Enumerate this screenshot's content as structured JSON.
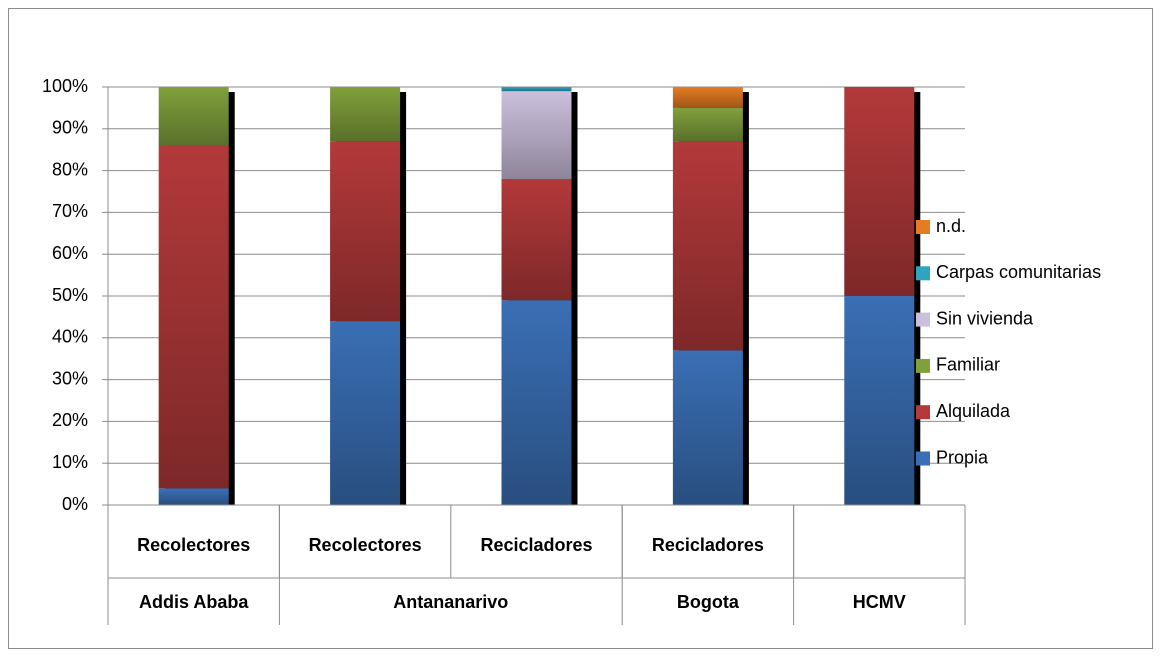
{
  "chart_data": {
    "type": "stacked_bar_100",
    "categories": [
      "Recolectores",
      "Recolectores",
      "Recicladores",
      "Recicladores",
      null
    ],
    "groups": [
      {
        "name": "Addis Ababa",
        "count": 1
      },
      {
        "name": "Antananarivo",
        "count": 2
      },
      {
        "name": "Bogota",
        "count": 1
      },
      {
        "name": "HCMV",
        "count": 1
      }
    ],
    "series": [
      {
        "name": "Propia",
        "color": "#3a6fb5",
        "values": [
          4,
          44,
          49,
          37,
          50
        ]
      },
      {
        "name": "Alquilada",
        "color": "#b3393a",
        "values": [
          82,
          43,
          29,
          50,
          50
        ]
      },
      {
        "name": "Familiar",
        "color": "#80a03c",
        "values": [
          14,
          13,
          0,
          8,
          0
        ]
      },
      {
        "name": "Sin vivienda",
        "color": "#cbbfdc",
        "values": [
          0,
          0,
          21,
          0,
          0
        ]
      },
      {
        "name": "Carpas comunitarias",
        "color": "#2fa3c0",
        "values": [
          0,
          0,
          1,
          0,
          0
        ]
      },
      {
        "name": "n.d.",
        "color": "#e57b22",
        "values": [
          0,
          0,
          0,
          5,
          0
        ]
      }
    ],
    "ylim": [
      0,
      100
    ],
    "yticks": [
      {
        "value": 0,
        "label": "0%"
      },
      {
        "value": 10,
        "label": "10%"
      },
      {
        "value": 20,
        "label": "20%"
      },
      {
        "value": 30,
        "label": "30%"
      },
      {
        "value": 40,
        "label": "40%"
      },
      {
        "value": 50,
        "label": "50%"
      },
      {
        "value": 60,
        "label": "60%"
      },
      {
        "value": 70,
        "label": "70%"
      },
      {
        "value": 80,
        "label": "80%"
      },
      {
        "value": 90,
        "label": "90%"
      },
      {
        "value": 100,
        "label": "100%"
      }
    ],
    "grid": true,
    "legend": "right"
  }
}
